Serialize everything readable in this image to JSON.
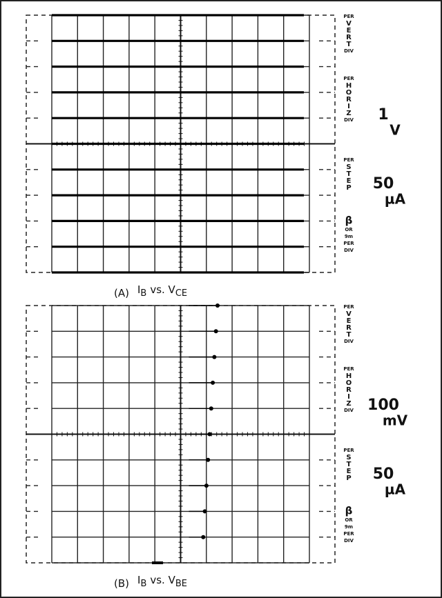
{
  "panels": [
    {
      "caption": [
        "(A)",
        "I",
        "B",
        "vs. V",
        "CE"
      ],
      "controls": [
        {
          "lines": [
            "PER",
            "V",
            "E",
            "R",
            "T",
            "DIV"
          ]
        },
        {
          "lines": [
            "PER",
            "H",
            "O",
            "R",
            "I",
            "Z",
            "DIV"
          ],
          "setting": [
            "1",
            "V"
          ]
        },
        {
          "lines": [
            "PER",
            "S",
            "T",
            "E",
            "P"
          ],
          "setting": [
            "50",
            "µA"
          ]
        },
        {
          "lines": [
            "β",
            "OR",
            "9m",
            "PER",
            "DIV"
          ]
        }
      ]
    },
    {
      "caption": [
        "(B)",
        "I",
        "B",
        "vs. V",
        "BE"
      ],
      "controls": [
        {
          "lines": [
            "PER",
            "V",
            "E",
            "R",
            "T",
            "DIV"
          ]
        },
        {
          "lines": [
            "PER",
            "H",
            "O",
            "R",
            "I",
            "Z",
            "DIV"
          ],
          "setting": [
            "100",
            "mV"
          ]
        },
        {
          "lines": [
            "PER",
            "S",
            "T",
            "E",
            "P"
          ],
          "setting": [
            "50",
            "µA"
          ]
        },
        {
          "lines": [
            "β",
            "OR",
            "9m",
            "PER",
            "DIV"
          ]
        }
      ]
    }
  ]
}
